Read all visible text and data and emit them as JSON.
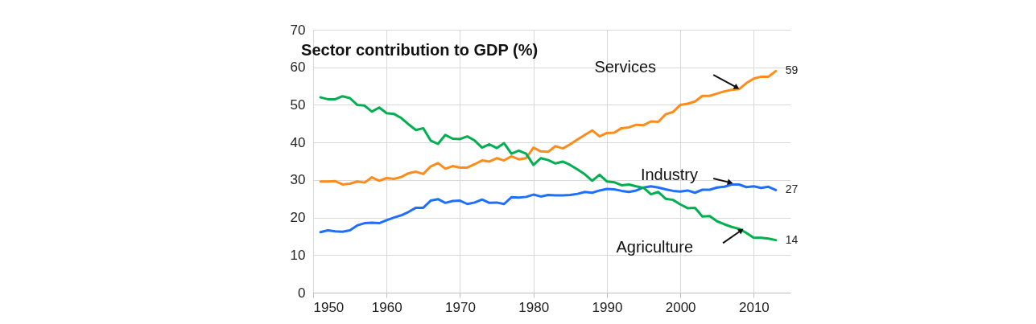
{
  "chart_data": {
    "type": "line",
    "title": "Sector contribution to GDP (%)",
    "x": [
      1951,
      1952,
      1953,
      1954,
      1955,
      1956,
      1957,
      1958,
      1959,
      1960,
      1961,
      1962,
      1963,
      1964,
      1965,
      1966,
      1967,
      1968,
      1969,
      1970,
      1971,
      1972,
      1973,
      1974,
      1975,
      1976,
      1977,
      1978,
      1979,
      1980,
      1981,
      1982,
      1983,
      1984,
      1985,
      1986,
      1987,
      1988,
      1989,
      1990,
      1991,
      1992,
      1993,
      1994,
      1995,
      1996,
      1997,
      1998,
      1999,
      2000,
      2001,
      2002,
      2003,
      2004,
      2005,
      2006,
      2007,
      2008,
      2009,
      2010,
      2011,
      2012,
      2013
    ],
    "series": [
      {
        "name": "Services",
        "color": "#ff8c1a",
        "values": [
          29.6,
          29.6,
          29.7,
          28.8,
          29,
          29.6,
          29.3,
          30.7,
          29.8,
          30.5,
          30.3,
          30.8,
          31.8,
          32.2,
          31.6,
          33.6,
          34.5,
          33,
          33.7,
          33.3,
          33.3,
          34.2,
          35.2,
          34.9,
          35.8,
          35.2,
          36.3,
          35.5,
          35.8,
          38.6,
          37.6,
          37.5,
          39,
          38.4,
          39.5,
          40.8,
          42,
          43.2,
          41.6,
          42.5,
          42.6,
          43.8,
          44,
          44.7,
          44.6,
          45.6,
          45.5,
          47.5,
          48.1,
          50,
          50.3,
          50.9,
          52.4,
          52.4,
          53,
          53.6,
          54,
          54.2,
          55.8,
          57,
          57.5,
          57.5,
          59
        ],
        "value_labels": [
          null,
          null,
          null,
          null,
          null,
          null,
          null,
          null,
          null,
          null,
          null,
          null,
          null,
          null,
          null,
          null,
          null,
          null,
          null,
          null,
          null,
          null,
          null,
          null,
          null,
          null,
          null,
          null,
          null,
          null,
          null,
          null,
          null,
          null,
          null,
          null,
          null,
          null,
          null,
          null,
          null,
          null,
          null,
          null,
          null,
          null,
          null,
          null,
          null,
          null,
          null,
          null,
          null,
          null,
          null,
          null,
          null,
          null,
          null,
          null,
          null,
          null,
          "59"
        ]
      },
      {
        "name": "Industry",
        "color": "#1f6fff",
        "values": [
          16.1,
          16.6,
          16.3,
          16.2,
          16.6,
          17.9,
          18.5,
          18.6,
          18.5,
          19.3,
          20,
          20.6,
          21.5,
          22.6,
          22.6,
          24.5,
          24.9,
          23.9,
          24.4,
          24.5,
          23.6,
          24,
          24.8,
          23.9,
          24,
          23.6,
          25.4,
          25.3,
          25.5,
          26.1,
          25.6,
          26,
          25.9,
          25.9,
          26,
          26.3,
          26.8,
          26.6,
          27.2,
          27.6,
          27.5,
          27.1,
          26.8,
          27.2,
          28,
          28.3,
          28,
          27.5,
          27.1,
          26.9,
          27.2,
          26.6,
          27.4,
          27.4,
          28,
          28.2,
          28.8,
          28.8,
          28.1,
          28.3,
          27.9,
          28.2,
          27.3
        ],
        "value_labels": [
          null,
          null,
          null,
          null,
          null,
          null,
          null,
          null,
          null,
          null,
          null,
          null,
          null,
          null,
          null,
          null,
          null,
          null,
          null,
          null,
          null,
          null,
          null,
          null,
          null,
          null,
          null,
          null,
          null,
          null,
          null,
          null,
          null,
          null,
          null,
          null,
          null,
          null,
          null,
          null,
          null,
          null,
          null,
          null,
          null,
          null,
          null,
          null,
          null,
          null,
          null,
          null,
          null,
          null,
          null,
          null,
          null,
          null,
          null,
          null,
          null,
          null,
          "27"
        ]
      },
      {
        "name": "Agriculture",
        "color": "#00b050",
        "values": [
          52,
          51.5,
          51.5,
          52.3,
          51.8,
          50,
          49.8,
          48.2,
          49.3,
          47.8,
          47.6,
          46.5,
          44.8,
          43.3,
          43.8,
          40.5,
          39.6,
          42,
          41,
          40.9,
          41.6,
          40.5,
          38.6,
          39.5,
          38.5,
          39.8,
          37,
          37.8,
          37,
          34,
          35.8,
          35.3,
          34.4,
          34.9,
          34,
          32.8,
          31.5,
          29.8,
          31.4,
          29.6,
          29.4,
          28.6,
          28.8,
          28.3,
          27.9,
          26.2,
          26.8,
          25,
          24.7,
          23.5,
          22.5,
          22.6,
          20.3,
          20.4,
          19,
          18.2,
          17.5,
          17,
          15.9,
          14.6,
          14.6,
          14.4,
          14
        ],
        "value_labels": [
          null,
          null,
          null,
          null,
          null,
          null,
          null,
          null,
          null,
          null,
          null,
          null,
          null,
          null,
          null,
          null,
          null,
          null,
          null,
          null,
          null,
          null,
          null,
          null,
          null,
          null,
          null,
          null,
          null,
          null,
          null,
          null,
          null,
          null,
          null,
          null,
          null,
          null,
          null,
          null,
          null,
          null,
          null,
          null,
          null,
          null,
          null,
          null,
          null,
          null,
          null,
          null,
          null,
          null,
          null,
          null,
          null,
          null,
          null,
          null,
          null,
          null,
          "14"
        ]
      }
    ],
    "xlim": [
      1950,
      2015
    ],
    "xticks": [
      1950,
      1960,
      1970,
      1980,
      1990,
      2000,
      2010
    ],
    "ylim": [
      0,
      70
    ],
    "yticks": [
      0,
      10,
      20,
      30,
      40,
      50,
      60,
      70
    ],
    "grid": true,
    "legend": false,
    "marker": "none",
    "line_style": "solid"
  }
}
